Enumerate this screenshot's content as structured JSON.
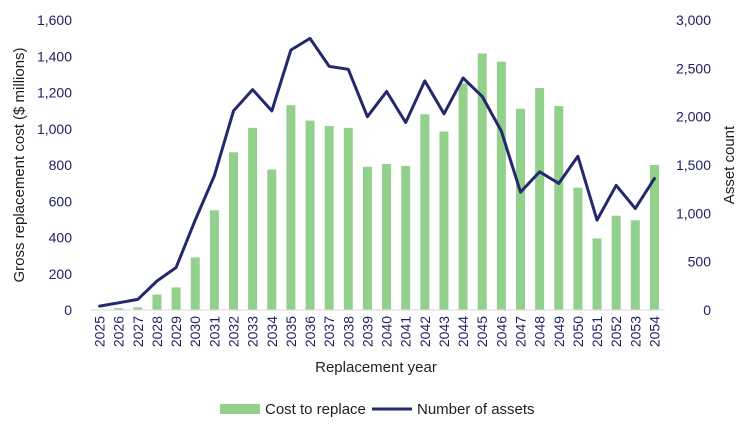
{
  "chart_data": {
    "type": "bar+line",
    "categories": [
      "2025",
      "2026",
      "2027",
      "2028",
      "2029",
      "2030",
      "2031",
      "2032",
      "2033",
      "2034",
      "2035",
      "2036",
      "2037",
      "2038",
      "2039",
      "2040",
      "2041",
      "2042",
      "2043",
      "2044",
      "2045",
      "2046",
      "2047",
      "2048",
      "2049",
      "2050",
      "2051",
      "2052",
      "2053",
      "2054"
    ],
    "series": [
      {
        "name": "Cost to replace",
        "type": "bar",
        "axis": "left",
        "color": "#92d08c",
        "values": [
          0,
          10,
          15,
          85,
          125,
          290,
          550,
          870,
          1005,
          775,
          1130,
          1045,
          1015,
          1005,
          790,
          805,
          795,
          1080,
          985,
          1250,
          1415,
          1370,
          1110,
          1225,
          1125,
          675,
          395,
          520,
          495,
          800
        ]
      },
      {
        "name": "Number of assets",
        "type": "line",
        "axis": "right",
        "color": "#24296e",
        "values": [
          40,
          75,
          110,
          300,
          440,
          930,
          1390,
          2060,
          2280,
          2060,
          2690,
          2810,
          2520,
          2490,
          2000,
          2260,
          1940,
          2370,
          2030,
          2400,
          2210,
          1850,
          1220,
          1430,
          1310,
          1590,
          930,
          1290,
          1050,
          1360
        ]
      }
    ],
    "xlabel": "Replacement year",
    "ylabel": "Gross replacement cost ($ millions)",
    "y2label": "Asset count",
    "ylim": [
      0,
      1600
    ],
    "y2lim": [
      0,
      3000
    ],
    "yticks": [
      "0",
      "200",
      "400",
      "600",
      "800",
      "1,000",
      "1,200",
      "1,400",
      "1,600"
    ],
    "y2ticks": [
      "0",
      "500",
      "1,000",
      "1,500",
      "2,000",
      "2,500",
      "3,000"
    ],
    "grid": false,
    "legend": "bottom"
  }
}
